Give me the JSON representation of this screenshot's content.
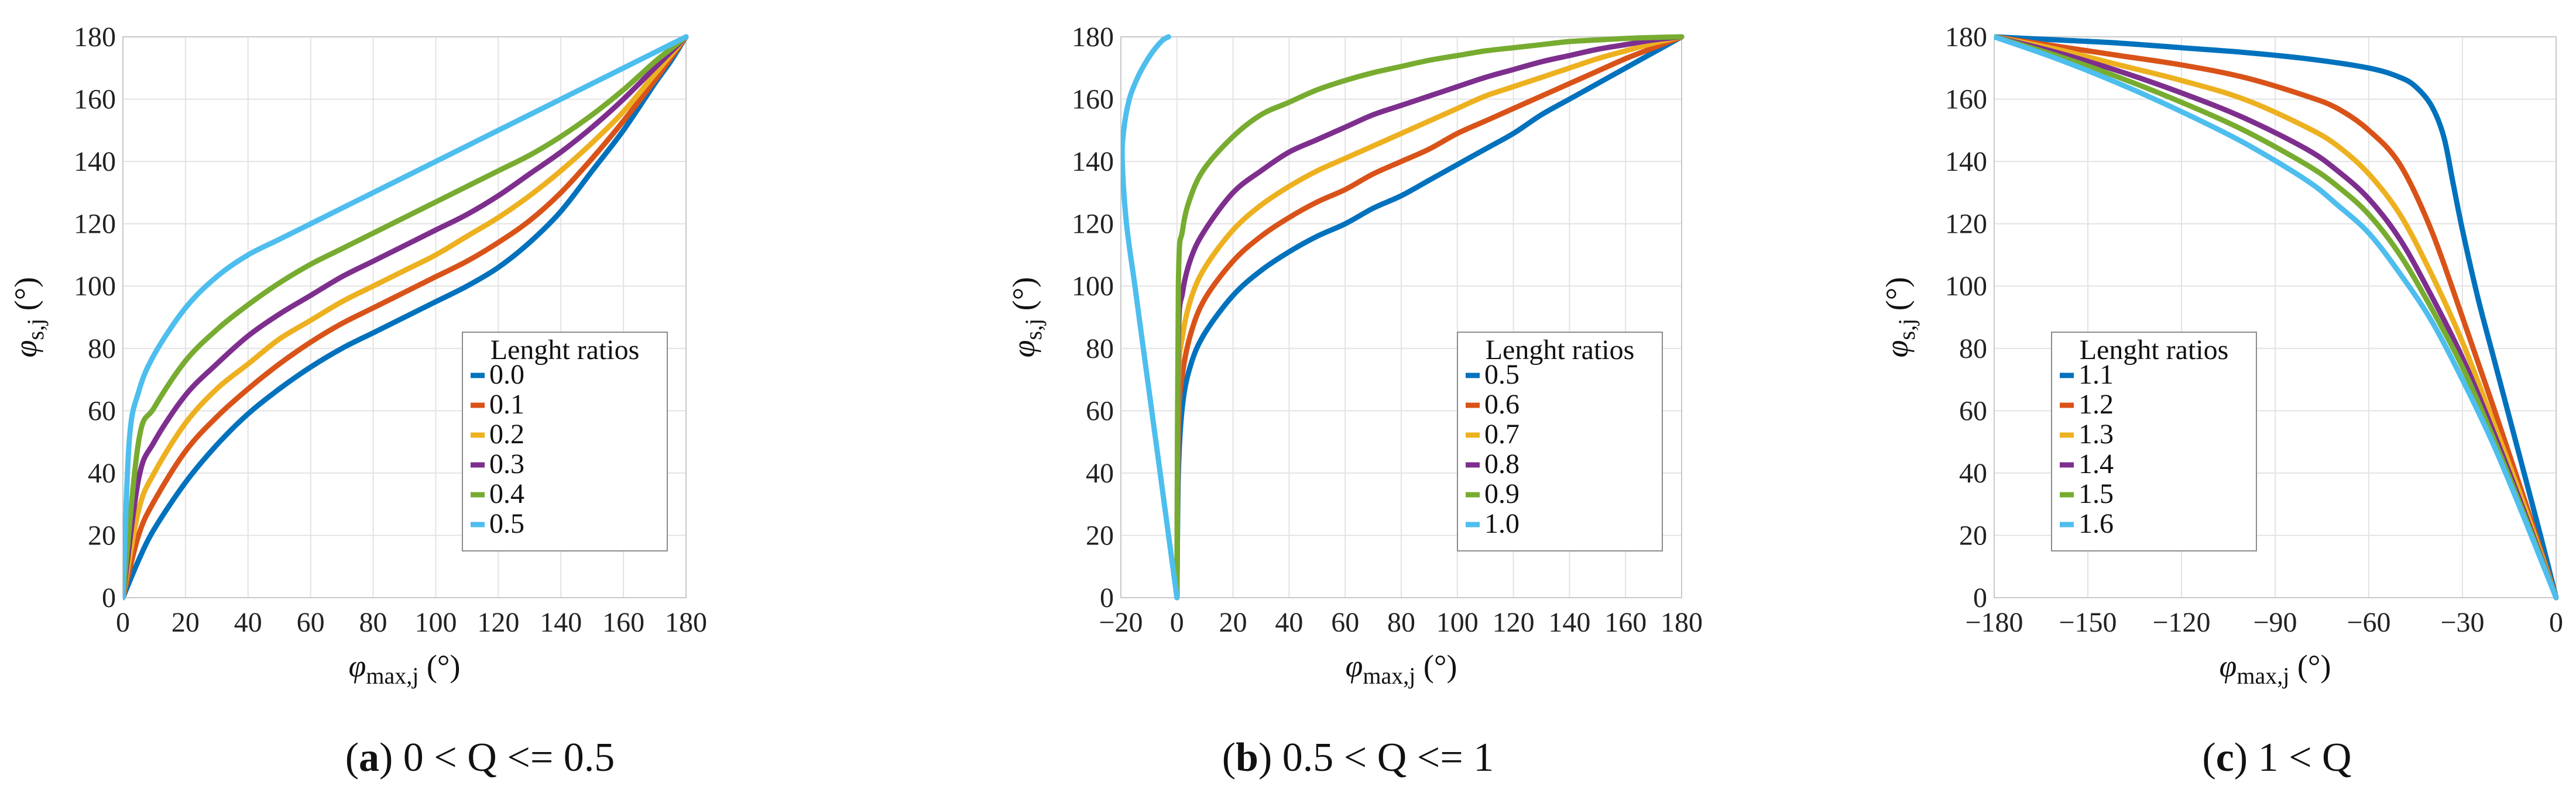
{
  "chart_data": [
    {
      "type": "line",
      "id": "a",
      "caption_letter": "a",
      "caption_text": "0 < Q <= 0.5",
      "xlabel_main": "φ",
      "xlabel_sub": "max,j",
      "xlabel_unit": "(°)",
      "ylabel_main": "φ",
      "ylabel_sub": "s,j",
      "ylabel_unit": "(°)",
      "xlim": [
        0,
        180
      ],
      "ylim": [
        0,
        180
      ],
      "xticks": [
        0,
        20,
        40,
        60,
        80,
        100,
        120,
        140,
        160,
        180
      ],
      "xtick_labels": [
        "0",
        "20",
        "40",
        "60",
        "80",
        "100",
        "120",
        "140",
        "160",
        "180"
      ],
      "yticks": [
        0,
        20,
        40,
        60,
        80,
        100,
        120,
        140,
        160,
        180
      ],
      "ytick_labels": [
        "0",
        "20",
        "40",
        "60",
        "80",
        "100",
        "120",
        "140",
        "160",
        "180"
      ],
      "grid": true,
      "legend_title": "Lenght ratios",
      "legend_position": "center-right",
      "series": [
        {
          "name": "0.0",
          "color": "#0072BD",
          "x": [
            0,
            5,
            10,
            20,
            30,
            40,
            50,
            60,
            70,
            80,
            90,
            100,
            110,
            120,
            130,
            140,
            150,
            160,
            170,
            175,
            180
          ],
          "y": [
            0,
            12,
            22,
            37,
            49,
            59,
            67,
            74,
            80,
            85,
            90,
            95,
            100,
            106,
            114,
            124,
            137,
            150,
            165,
            172,
            180
          ]
        },
        {
          "name": "0.1",
          "color": "#D95319",
          "x": [
            0,
            5,
            10,
            20,
            30,
            40,
            50,
            60,
            70,
            80,
            90,
            100,
            110,
            120,
            130,
            140,
            150,
            160,
            170,
            175,
            180
          ],
          "y": [
            0,
            20,
            31,
            47,
            58,
            67,
            75,
            82,
            88,
            93,
            98,
            103,
            108,
            114,
            121,
            130,
            141,
            153,
            166,
            173,
            180
          ]
        },
        {
          "name": "0.2",
          "color": "#EDB120",
          "x": [
            0,
            5,
            10,
            20,
            30,
            40,
            50,
            60,
            70,
            80,
            90,
            100,
            110,
            120,
            130,
            140,
            150,
            160,
            170,
            175,
            180
          ],
          "y": [
            0,
            28,
            40,
            56,
            67,
            75,
            83,
            89,
            95,
            100,
            105,
            110,
            116,
            122,
            129,
            137,
            146,
            156,
            168,
            174,
            180
          ]
        },
        {
          "name": "0.3",
          "color": "#7E2F8E",
          "x": [
            0,
            5,
            10,
            20,
            30,
            40,
            50,
            60,
            70,
            80,
            90,
            100,
            110,
            120,
            130,
            140,
            150,
            160,
            170,
            175,
            180
          ],
          "y": [
            0,
            38,
            50,
            65,
            75,
            84,
            91,
            97,
            103,
            108,
            113,
            118,
            123,
            129,
            136,
            143,
            151,
            160,
            170,
            175,
            180
          ]
        },
        {
          "name": "0.4",
          "color": "#77AC30",
          "x": [
            0,
            5,
            10,
            20,
            30,
            40,
            50,
            60,
            70,
            80,
            90,
            100,
            110,
            120,
            130,
            140,
            150,
            160,
            170,
            175,
            180
          ],
          "y": [
            0,
            50,
            61,
            76,
            86,
            94,
            101,
            107,
            112,
            117,
            122,
            127,
            132,
            137,
            142,
            148,
            155,
            163,
            172,
            176,
            180
          ]
        },
        {
          "name": "0.5",
          "color": "#4DBEEE",
          "x": [
            0,
            2,
            5,
            10,
            20,
            30,
            40,
            50,
            60,
            70,
            80,
            90,
            100,
            110,
            120,
            130,
            140,
            150,
            160,
            170,
            175,
            180
          ],
          "y": [
            0,
            50,
            66,
            78,
            93,
            103,
            110,
            115,
            120,
            125,
            130,
            135,
            140,
            145,
            150,
            155,
            160,
            165,
            170,
            175,
            177.5,
            180
          ]
        }
      ]
    },
    {
      "type": "line",
      "id": "b",
      "caption_letter": "b",
      "caption_text": "0.5 < Q <= 1",
      "xlabel_main": "φ",
      "xlabel_sub": "max,j",
      "xlabel_unit": "(°)",
      "ylabel_main": "φ",
      "ylabel_sub": "s,j",
      "ylabel_unit": "(°)",
      "xlim": [
        -20,
        180
      ],
      "ylim": [
        0,
        180
      ],
      "xticks": [
        -20,
        0,
        20,
        40,
        60,
        80,
        100,
        120,
        140,
        160,
        180
      ],
      "xtick_labels": [
        "−20",
        "0",
        "20",
        "40",
        "60",
        "80",
        "100",
        "120",
        "140",
        "160",
        "180"
      ],
      "yticks": [
        0,
        20,
        40,
        60,
        80,
        100,
        120,
        140,
        160,
        180
      ],
      "ytick_labels": [
        "0",
        "20",
        "40",
        "60",
        "80",
        "100",
        "120",
        "140",
        "160",
        "180"
      ],
      "grid": true,
      "legend_title": "Lenght ratios",
      "legend_position": "center-right",
      "series": [
        {
          "name": "0.5",
          "color": "#0072BD",
          "x": [
            0,
            0.5,
            2,
            5,
            10,
            20,
            30,
            40,
            50,
            60,
            70,
            80,
            90,
            100,
            110,
            120,
            130,
            140,
            150,
            160,
            170,
            180
          ],
          "y": [
            0,
            40,
            62,
            75,
            85,
            97,
            105,
            111,
            116,
            120,
            125,
            129,
            134,
            139,
            144,
            149,
            155,
            160,
            165,
            170,
            175,
            180
          ]
        },
        {
          "name": "0.6",
          "color": "#D95319",
          "x": [
            0,
            0.5,
            2,
            5,
            10,
            20,
            30,
            40,
            50,
            60,
            70,
            80,
            90,
            100,
            110,
            120,
            130,
            140,
            150,
            160,
            170,
            180
          ],
          "y": [
            0,
            55,
            72,
            85,
            96,
            108,
            116,
            122,
            127,
            131,
            136,
            140,
            144,
            149,
            153,
            157,
            161,
            165,
            169,
            173,
            176.5,
            180
          ]
        },
        {
          "name": "0.7",
          "color": "#EDB120",
          "x": [
            0,
            0.5,
            2,
            5,
            10,
            20,
            30,
            40,
            50,
            60,
            70,
            80,
            90,
            100,
            110,
            120,
            130,
            140,
            150,
            160,
            170,
            180
          ],
          "y": [
            0,
            68,
            84,
            96,
            106,
            118,
            126,
            132,
            137,
            141,
            145,
            149,
            153,
            157,
            161,
            164,
            167,
            170,
            173,
            175.5,
            178,
            180
          ]
        },
        {
          "name": "0.8",
          "color": "#7E2F8E",
          "x": [
            0,
            0.5,
            2,
            5,
            10,
            20,
            30,
            40,
            50,
            60,
            70,
            80,
            90,
            100,
            110,
            120,
            130,
            140,
            150,
            160,
            170,
            180
          ],
          "y": [
            0,
            82,
            98,
            109,
            118,
            130,
            137,
            143,
            147,
            151,
            155,
            158,
            161,
            164,
            167,
            169.5,
            172,
            174,
            176,
            177.5,
            179,
            180
          ]
        },
        {
          "name": "0.9",
          "color": "#77AC30",
          "x": [
            0,
            0.5,
            2,
            5,
            10,
            20,
            30,
            40,
            50,
            60,
            70,
            80,
            90,
            100,
            110,
            120,
            130,
            140,
            150,
            160,
            170,
            180
          ],
          "y": [
            0,
            100,
            118,
            129,
            138,
            148,
            155,
            159,
            163,
            166,
            168.5,
            170.5,
            172.5,
            174,
            175.5,
            176.5,
            177.5,
            178.5,
            179,
            179.5,
            179.8,
            180
          ]
        },
        {
          "name": "1.0",
          "color": "#4DBEEE",
          "x": [
            0,
            -3,
            -6,
            -9,
            -12,
            -15,
            -18,
            -19.5,
            -19,
            -17,
            -14,
            -11,
            -8,
            -5,
            -3
          ],
          "y": [
            0,
            20,
            40,
            60,
            80,
            100,
            120,
            140,
            150,
            160,
            167,
            172,
            176,
            179,
            180
          ]
        }
      ]
    },
    {
      "type": "line",
      "id": "c",
      "caption_letter": "c",
      "caption_text": "1 < Q",
      "xlabel_main": "φ",
      "xlabel_sub": "max,j",
      "xlabel_unit": "(°)",
      "ylabel_main": "φ",
      "ylabel_sub": "s,j",
      "ylabel_unit": "(°)",
      "xlim": [
        -180,
        0
      ],
      "ylim": [
        0,
        180
      ],
      "xticks": [
        -180,
        -150,
        -120,
        -90,
        -60,
        -30,
        0
      ],
      "xtick_labels": [
        "−180",
        "−150",
        "−120",
        "−90",
        "−60",
        "−30",
        "0"
      ],
      "yticks": [
        0,
        20,
        40,
        60,
        80,
        100,
        120,
        140,
        160,
        180
      ],
      "ytick_labels": [
        "0",
        "20",
        "40",
        "60",
        "80",
        "100",
        "120",
        "140",
        "160",
        "180"
      ],
      "grid": true,
      "legend_title": "Lenght ratios",
      "legend_position": "center-left",
      "series": [
        {
          "name": "1.1",
          "color": "#0072BD",
          "x": [
            -180,
            -160,
            -140,
            -120,
            -100,
            -80,
            -60,
            -50,
            -45,
            -40,
            -36,
            -33,
            -30,
            -25,
            -20,
            -15,
            -10,
            -5,
            0
          ],
          "y": [
            180,
            179,
            178,
            176.5,
            175,
            173,
            170,
            167,
            164,
            158,
            148,
            133,
            118,
            96,
            77,
            58,
            39,
            20,
            0
          ]
        },
        {
          "name": "1.2",
          "color": "#D95319",
          "x": [
            -180,
            -160,
            -140,
            -120,
            -100,
            -80,
            -70,
            -60,
            -50,
            -40,
            -30,
            -20,
            -10,
            0
          ],
          "y": [
            180,
            177,
            174,
            171,
            167,
            161,
            157,
            150,
            139,
            118,
            90,
            61,
            31,
            0
          ]
        },
        {
          "name": "1.3",
          "color": "#EDB120",
          "x": [
            -180,
            -160,
            -140,
            -120,
            -100,
            -80,
            -70,
            -60,
            -50,
            -40,
            -30,
            -20,
            -10,
            0
          ],
          "y": [
            180,
            176,
            171,
            166,
            160,
            151,
            145,
            136,
            123,
            104,
            82,
            56,
            29,
            0
          ]
        },
        {
          "name": "1.4",
          "color": "#7E2F8E",
          "x": [
            -180,
            -160,
            -140,
            -120,
            -100,
            -80,
            -70,
            -60,
            -50,
            -40,
            -30,
            -20,
            -10,
            0
          ],
          "y": [
            180,
            175,
            169,
            162,
            154,
            144,
            137,
            128,
            115,
            97,
            77,
            53,
            27,
            0
          ]
        },
        {
          "name": "1.5",
          "color": "#77AC30",
          "x": [
            -180,
            -160,
            -140,
            -120,
            -100,
            -80,
            -70,
            -60,
            -50,
            -40,
            -30,
            -20,
            -10,
            0
          ],
          "y": [
            180,
            174,
            167,
            159,
            150,
            139,
            132,
            123,
            110,
            93,
            74,
            51,
            26,
            0
          ]
        },
        {
          "name": "1.6",
          "color": "#4DBEEE",
          "x": [
            -180,
            -160,
            -140,
            -120,
            -100,
            -80,
            -70,
            -60,
            -50,
            -40,
            -30,
            -20,
            -10,
            0
          ],
          "y": [
            180,
            173,
            165,
            156,
            146,
            134,
            126,
            117,
            104,
            89,
            70,
            49,
            25,
            0
          ]
        }
      ]
    }
  ]
}
